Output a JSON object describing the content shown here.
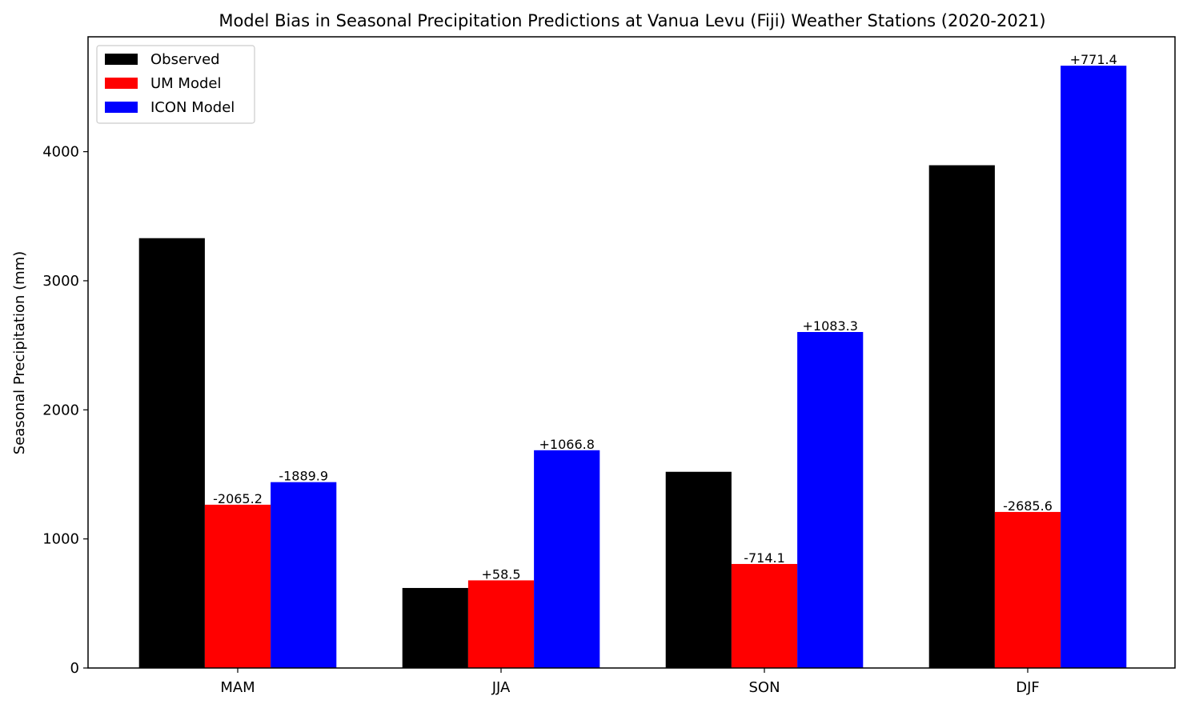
{
  "chart_data": {
    "type": "bar",
    "title": "Model Bias in Seasonal Precipitation Predictions at Vanua Levu (Fiji) Weather Stations (2020-2021)",
    "xlabel": "",
    "ylabel": "Seasonal Precipitation (mm)",
    "categories": [
      "MAM",
      "JJA",
      "SON",
      "DJF"
    ],
    "ylim": [
      0,
      4890
    ],
    "yticks": [
      0,
      1000,
      2000,
      3000,
      4000
    ],
    "grid": false,
    "legend_position": "top-left",
    "series": [
      {
        "name": "Observed",
        "color": "#000000",
        "values": [
          3330,
          620,
          1520,
          3895
        ],
        "labels": [
          "",
          "",
          "",
          ""
        ]
      },
      {
        "name": "UM Model",
        "color": "#ff0000",
        "values": [
          1265,
          679,
          806,
          1209
        ],
        "labels": [
          "-2065.2",
          "+58.5",
          "-714.1",
          "-2685.6"
        ]
      },
      {
        "name": "ICON Model",
        "color": "#0000ff",
        "values": [
          1440,
          1687,
          2603,
          4666
        ],
        "labels": [
          "-1889.9",
          "+1066.8",
          "+1083.3",
          "+771.4"
        ]
      }
    ]
  }
}
